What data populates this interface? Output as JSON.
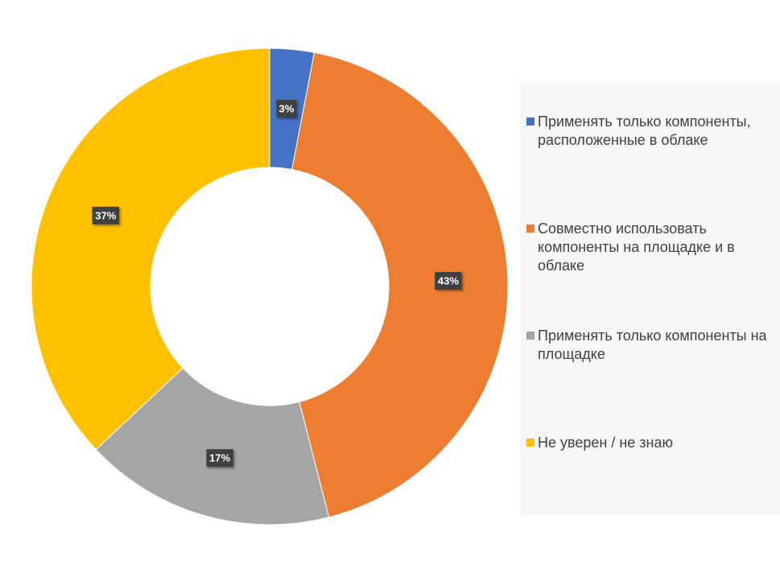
{
  "chart_data": {
    "type": "pie",
    "variant": "donut",
    "title": "",
    "categories": [
      "Применять только компоненты, расположенные в облаке",
      "Совместно использовать компоненты на площадке и в облаке",
      "Применять только компоненты на площадке",
      "Не уверен / не знаю"
    ],
    "values": [
      3,
      43,
      17,
      37
    ],
    "data_labels": [
      "3%",
      "43%",
      "17%",
      "37%"
    ],
    "colors": [
      "#4472C4",
      "#ED7D31",
      "#A5A5A5",
      "#FFC000"
    ],
    "legend_position": "right",
    "start_angle_deg": 0
  }
}
